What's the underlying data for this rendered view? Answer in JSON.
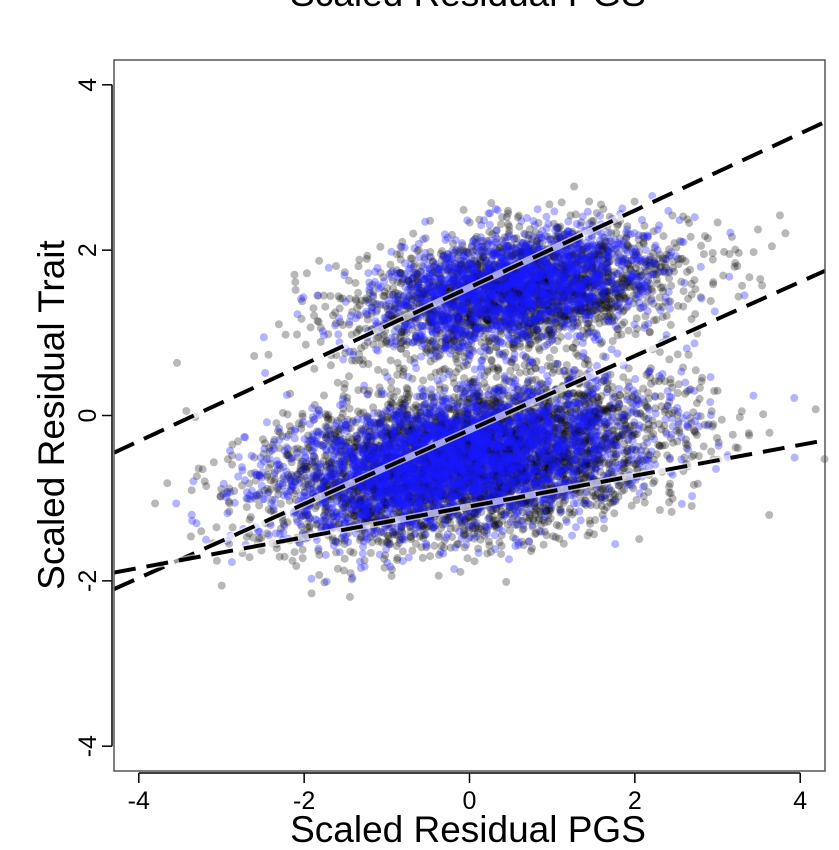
{
  "chart_data": {
    "type": "scatter",
    "title": "Scaled Residual PGS",
    "xlabel": "Scaled Residual PGS",
    "ylabel": "Scaled Residual Trait",
    "xlim": [
      -4.3,
      4.3
    ],
    "ylim": [
      -4.3,
      4.3
    ],
    "xticks": [
      -4,
      -2,
      0,
      2,
      4
    ],
    "yticks": [
      -4,
      -2,
      0,
      2,
      4
    ],
    "grid": false,
    "legend": "none",
    "series": [
      {
        "color": "#000000",
        "opacity": 0.28,
        "clusters": [
          {
            "mean": [
              0.6,
              1.5
            ],
            "sd": [
              1.0,
              0.38
            ],
            "corr": 0.35,
            "n": 2200
          },
          {
            "mean": [
              0.0,
              -0.55
            ],
            "sd": [
              1.15,
              0.48
            ],
            "corr": 0.35,
            "n": 4200
          }
        ]
      },
      {
        "color": "#1a1aff",
        "opacity": 0.32,
        "clusters": [
          {
            "mean": [
              0.5,
              1.55
            ],
            "sd": [
              0.85,
              0.35
            ],
            "corr": 0.4,
            "n": 1700
          },
          {
            "mean": [
              -0.2,
              -0.55
            ],
            "sd": [
              1.1,
              0.45
            ],
            "corr": 0.4,
            "n": 3000
          }
        ]
      }
    ],
    "fit_lines": [
      {
        "x": [
          -4.3,
          4.3
        ],
        "y": [
          -0.45,
          3.55
        ]
      },
      {
        "x": [
          -4.3,
          4.3
        ],
        "y": [
          -2.1,
          1.75
        ]
      },
      {
        "x": [
          -4.3,
          4.3
        ],
        "y": [
          -1.9,
          -0.3
        ]
      }
    ]
  },
  "colors": {
    "fit_line": "#000000",
    "fit_highlight": "#ffffff",
    "frame": "#555555"
  }
}
